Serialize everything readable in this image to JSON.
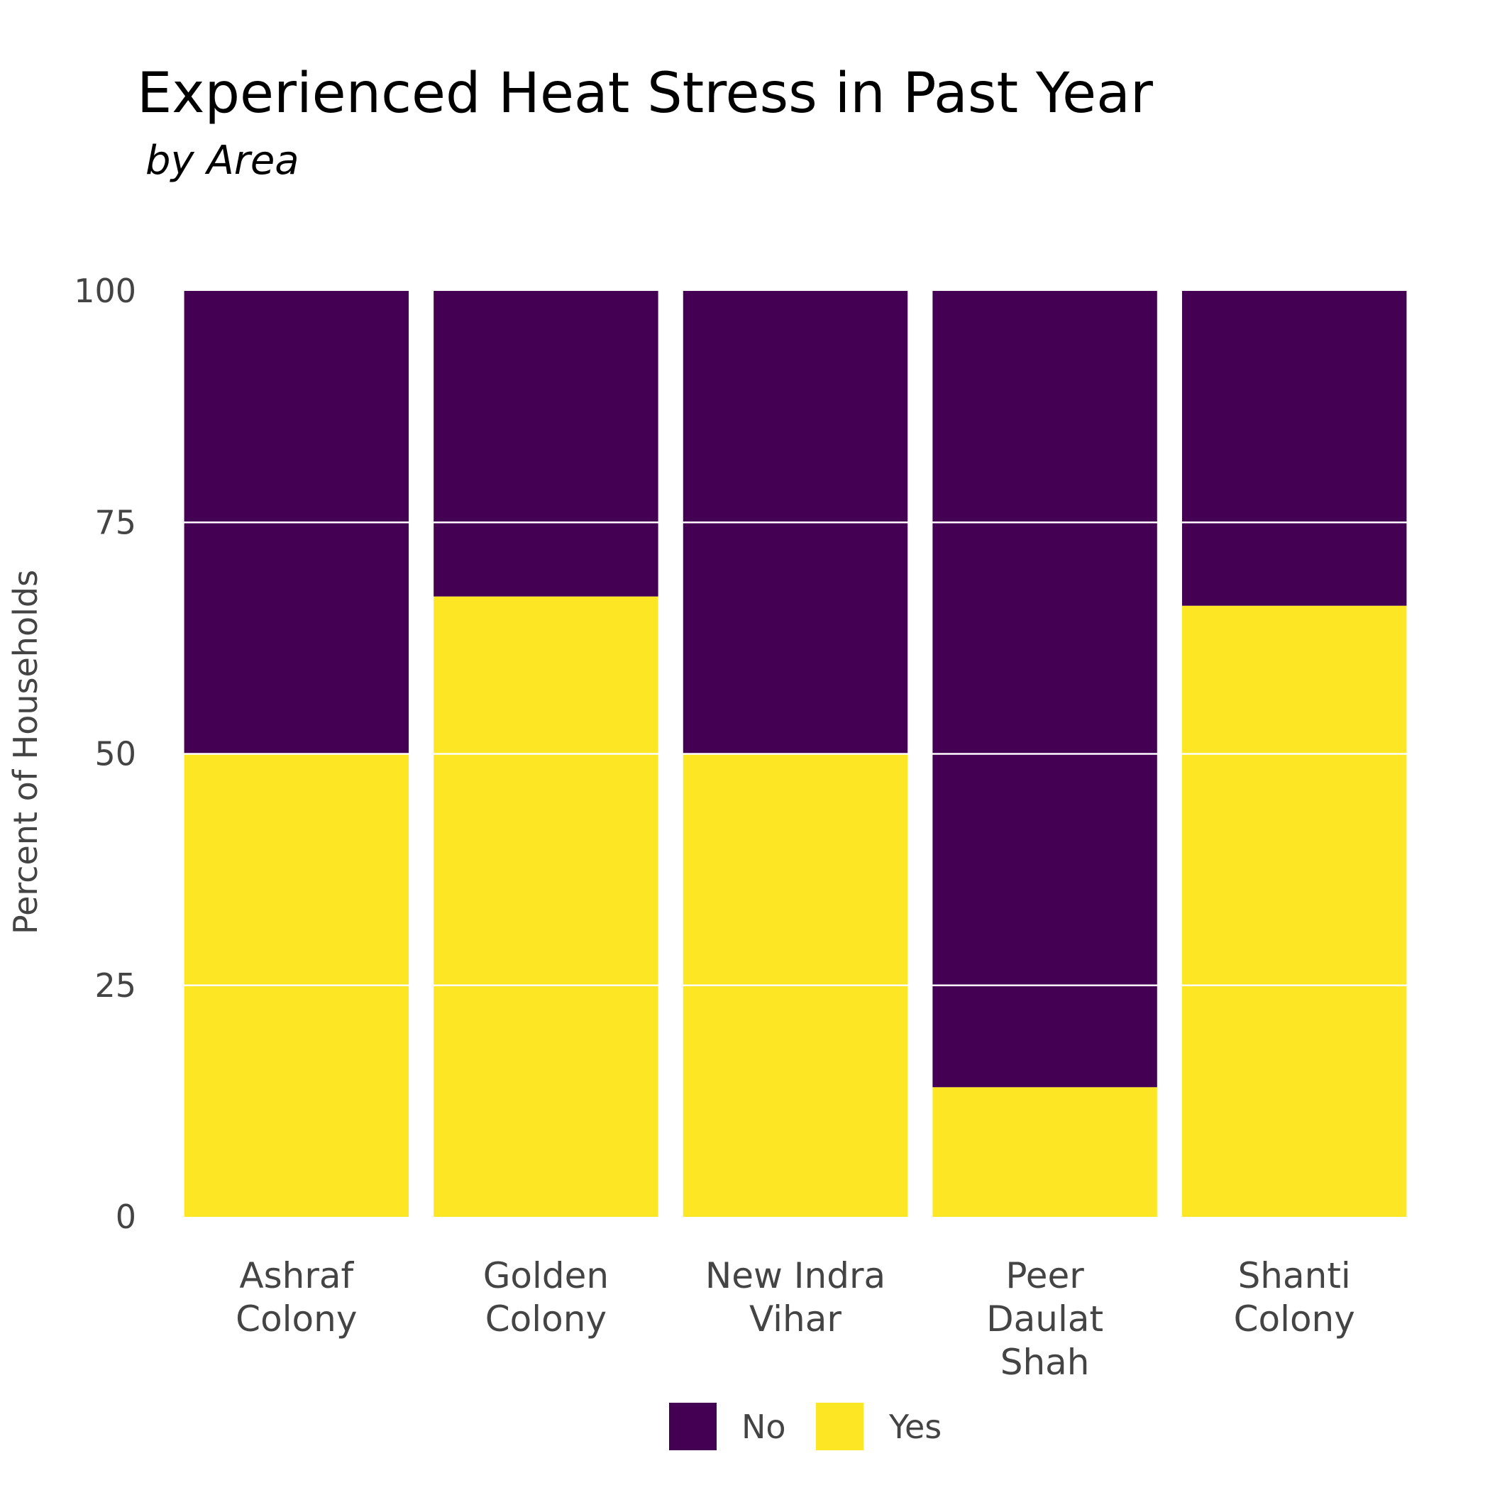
{
  "chart_data": {
    "type": "bar",
    "stacked": true,
    "title": "Experienced Heat Stress in Past Year",
    "subtitle": "by Area",
    "xlabel": "",
    "ylabel": "Percent of Households",
    "ylim": [
      0,
      100
    ],
    "yticks": [
      "0",
      "25",
      "50",
      "75",
      "100"
    ],
    "grid": "horizontal lines drawn over bars",
    "legend_position": "bottom",
    "categories": [
      [
        "Ashraf",
        "Colony"
      ],
      [
        "Golden",
        "Colony"
      ],
      [
        "New Indra",
        "Vihar"
      ],
      [
        "Peer",
        "Daulat",
        "Shah"
      ],
      [
        "Shanti",
        "Colony"
      ]
    ],
    "series": [
      {
        "name": "No",
        "color": "#440154",
        "values": [
          50,
          33,
          50,
          86,
          34
        ]
      },
      {
        "name": "Yes",
        "color": "#FDE725",
        "values": [
          50,
          67,
          50,
          14,
          66
        ]
      }
    ]
  }
}
